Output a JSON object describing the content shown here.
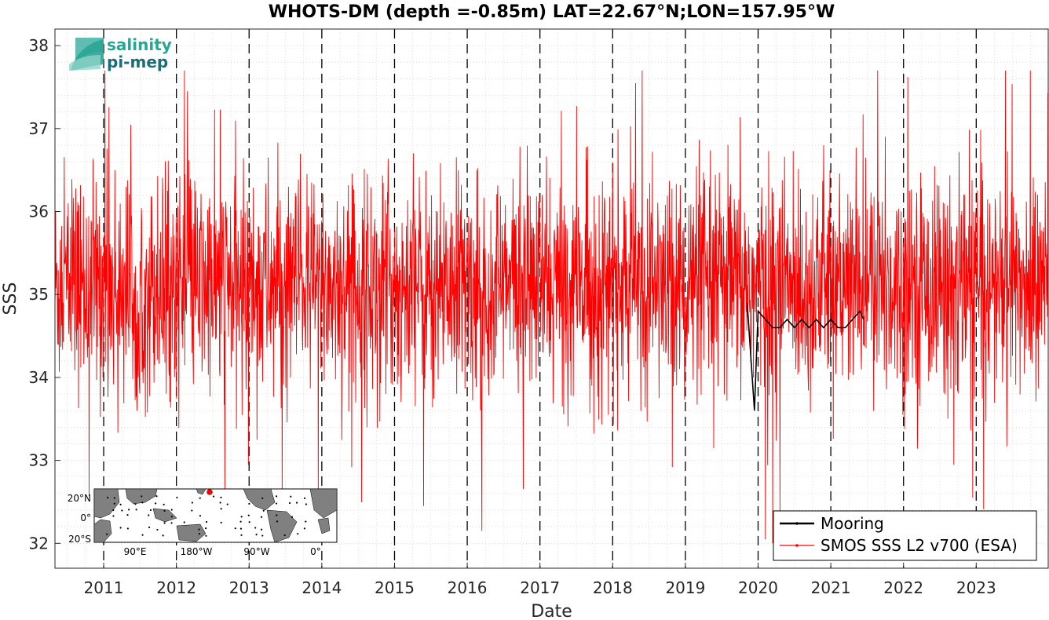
{
  "chart_data": {
    "type": "line",
    "title": "WHOTS-DM (depth =-0.85m) LAT=22.67°N;LON=157.95°W",
    "xlabel": "Date",
    "ylabel": "SSS",
    "xlim": [
      2010.33,
      2023.99
    ],
    "ylim": [
      31.7,
      38.2
    ],
    "x_ticks": [
      "2011",
      "2012",
      "2013",
      "2014",
      "2015",
      "2016",
      "2017",
      "2018",
      "2019",
      "2020",
      "2021",
      "2022",
      "2023"
    ],
    "x_tick_values": [
      2011,
      2012,
      2013,
      2014,
      2015,
      2016,
      2017,
      2018,
      2019,
      2020,
      2021,
      2022,
      2023
    ],
    "y_ticks": [
      32,
      33,
      34,
      35,
      36,
      37,
      38
    ],
    "grid": true,
    "year_markers": "dashed-vertical",
    "legend_position": "bottom-right",
    "series": [
      {
        "name": "Mooring",
        "color": "#000000",
        "style": "line",
        "x_range": [
          2019.85,
          2021.45
        ],
        "values_desc": "",
        "x": [
          2019.85,
          2019.95,
          2020.0,
          2020.1,
          2020.2,
          2020.3,
          2020.4,
          2020.5,
          2020.6,
          2020.7,
          2020.8,
          2020.9,
          2021.0,
          2021.1,
          2021.2,
          2021.3,
          2021.4,
          2021.45
        ],
        "y": [
          34.9,
          33.6,
          34.8,
          34.7,
          34.6,
          34.6,
          34.7,
          34.6,
          34.7,
          34.6,
          34.7,
          34.6,
          34.7,
          34.6,
          34.6,
          34.7,
          34.8,
          34.7
        ]
      },
      {
        "name": "SMOS SSS L2 v700 (ESA)",
        "color": "#ff0000",
        "style": "line-markers",
        "x_range": [
          2010.33,
          2023.99
        ],
        "mean": 35.1,
        "spread": 0.65,
        "min": 32.0,
        "max": 37.7,
        "notable_points": [
          {
            "x": 2011.02,
            "y": 37.7
          },
          {
            "x": 2012.15,
            "y": 37.45
          },
          {
            "x": 2013.95,
            "y": 32.55
          },
          {
            "x": 2015.4,
            "y": 32.45
          },
          {
            "x": 2016.2,
            "y": 32.15
          },
          {
            "x": 2020.1,
            "y": 32.05
          },
          {
            "x": 2020.2,
            "y": 32.0
          },
          {
            "x": 2022.95,
            "y": 32.55
          },
          {
            "x": 2021.75,
            "y": 36.9
          }
        ]
      }
    ]
  },
  "logo": {
    "line1": "salinity",
    "line2": "pi-mep"
  },
  "inset_map": {
    "lat_labels": [
      "20°N",
      "0°",
      "20°S"
    ],
    "lon_labels": [
      "90°E",
      "180°W",
      "90°W",
      "0°"
    ],
    "ocean_color": "#ffffff",
    "land_color": "#808080",
    "marker_color": "#ff0000"
  }
}
